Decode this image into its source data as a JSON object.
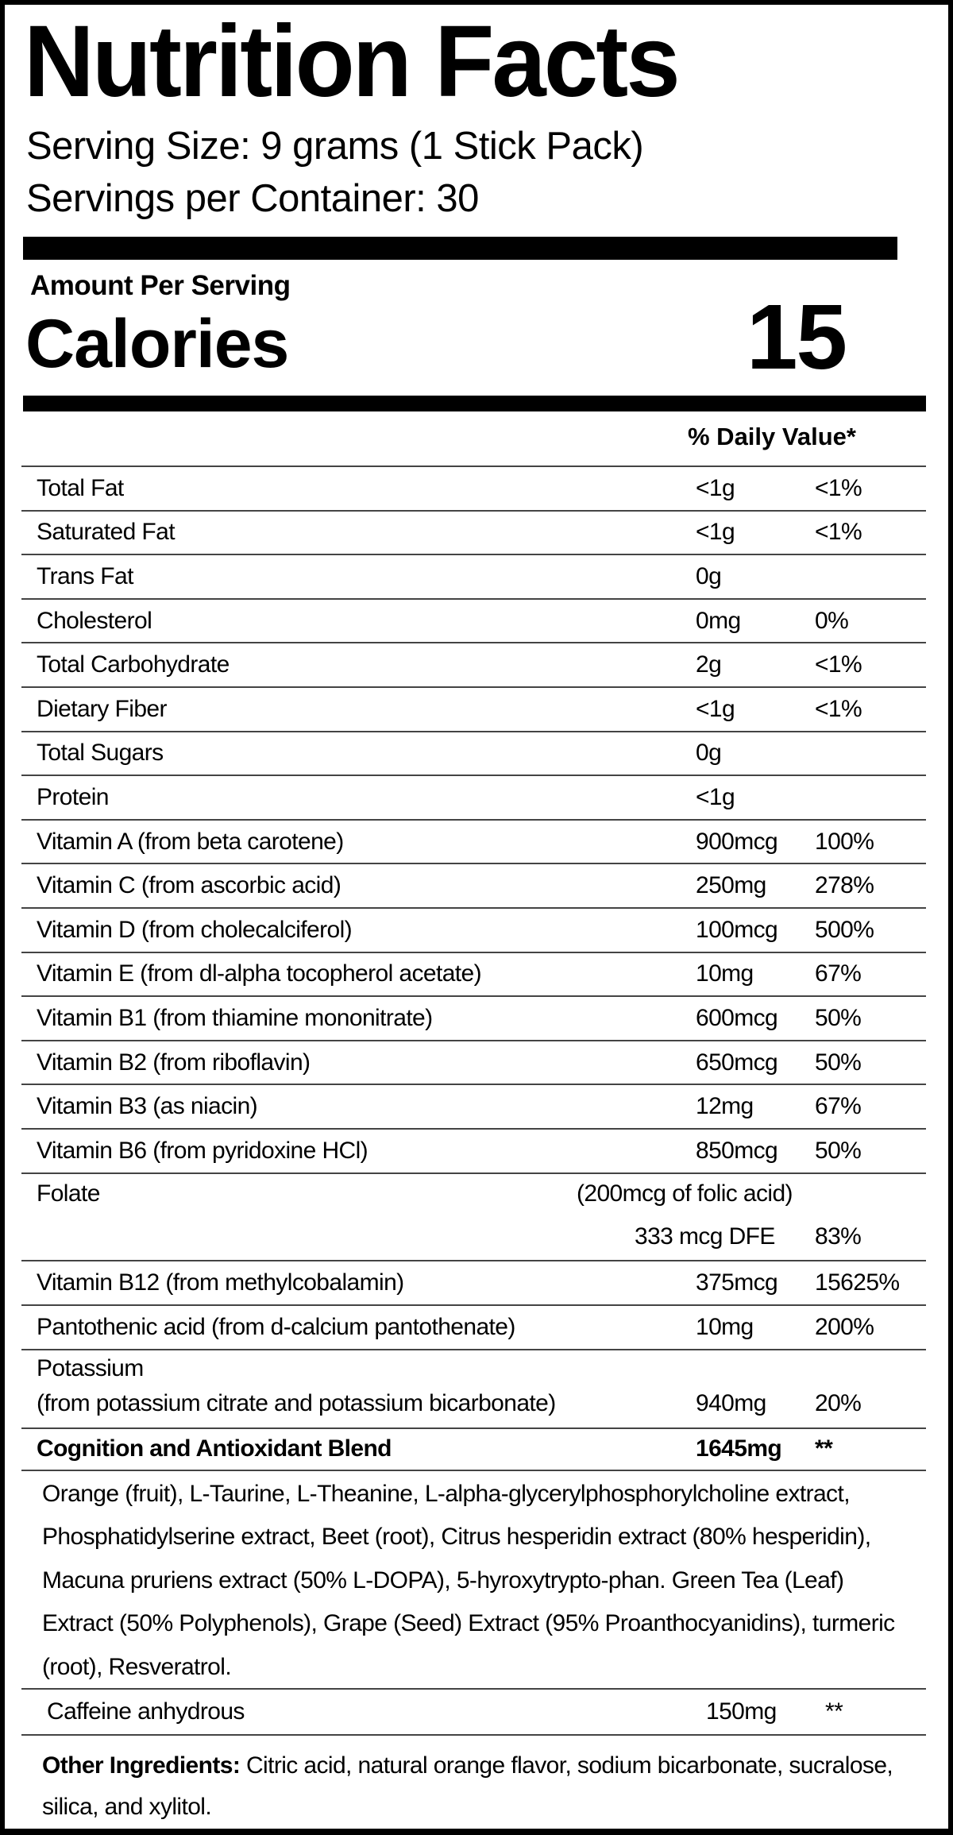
{
  "header": {
    "title": "Nutrition Facts",
    "serving_size": "Serving Size: 9 grams (1 Stick Pack)",
    "servings_per_container": "Servings per Container: 30"
  },
  "calories": {
    "amount_label": "Amount Per Serving",
    "label": "Calories",
    "value": "15"
  },
  "dv_header": "% Daily Value*",
  "nutrients": [
    {
      "name": "Total Fat",
      "amount": "<1g",
      "dv": "<1%"
    },
    {
      "name": "Saturated Fat",
      "amount": "<1g",
      "dv": "<1%"
    },
    {
      "name": "Trans Fat",
      "amount": "0g",
      "dv": ""
    },
    {
      "name": "Cholesterol",
      "amount": "0mg",
      "dv": "0%"
    },
    {
      "name": "Total Carbohydrate",
      "amount": "2g",
      "dv": "<1%"
    },
    {
      "name": "Dietary Fiber",
      "amount": "<1g",
      "dv": "<1%"
    },
    {
      "name": "Total Sugars",
      "amount": "0g",
      "dv": ""
    },
    {
      "name": "Protein",
      "amount": "<1g",
      "dv": ""
    },
    {
      "name": "Vitamin A (from beta carotene)",
      "amount": "900mcg",
      "dv": "100%"
    },
    {
      "name": "Vitamin C (from ascorbic acid)",
      "amount": "250mg",
      "dv": "278%"
    },
    {
      "name": "Vitamin D (from cholecalciferol)",
      "amount": "100mcg",
      "dv": "500%"
    },
    {
      "name": "Vitamin E (from dl-alpha tocopherol acetate)",
      "amount": "10mg",
      "dv": "67%"
    },
    {
      "name": "Vitamin B1 (from thiamine mononitrate)",
      "amount": "600mcg",
      "dv": "50%"
    },
    {
      "name": "Vitamin B2 (from riboflavin)",
      "amount": "650mcg",
      "dv": "50%"
    },
    {
      "name": "Vitamin B3 (as niacin)",
      "amount": "12mg",
      "dv": "67%"
    },
    {
      "name": "Vitamin B6 (from pyridoxine HCl)",
      "amount": "850mcg",
      "dv": "50%"
    }
  ],
  "folate": {
    "name": "Folate",
    "note": "(200mcg of folic acid)",
    "amount": "333 mcg DFE",
    "dv": "83%"
  },
  "nutrients_2": [
    {
      "name": "Vitamin B12 (from methylcobalamin)",
      "amount": "375mcg",
      "dv": "15625%"
    },
    {
      "name": "Pantothenic acid (from d-calcium pantothenate)",
      "amount": "10mg",
      "dv": "200%"
    }
  ],
  "potassium": {
    "name": "Potassium",
    "source": "(from potassium citrate and potassium bicarbonate)",
    "amount": "940mg",
    "dv": "20%"
  },
  "blend": {
    "name": "Cognition and Antioxidant Blend",
    "amount": "1645mg",
    "dv": "**",
    "ingredients": "Orange (fruit), L-Taurine, L-Theanine, L-alpha-glycerylphosphorylcholine extract, Phosphatidylserine extract, Beet (root), Citrus hesperidin extract (80% hesperidin), Macuna pruriens extract (50% L-DOPA), 5-hyroxytrypto-phan. Green Tea (Leaf) Extract (50% Polyphenols), Grape (Seed) Extract (95% Proanthocyanidins), turmeric (root), Resveratrol."
  },
  "caffeine": {
    "name": "Caffeine anhydrous",
    "amount": "150mg",
    "dv": "**"
  },
  "other_ingredients": {
    "label": "Other Ingredients:",
    "text": " Citric acid, natural orange flavor, sodium bicarbonate, sucralose, silica, and xylitol."
  }
}
